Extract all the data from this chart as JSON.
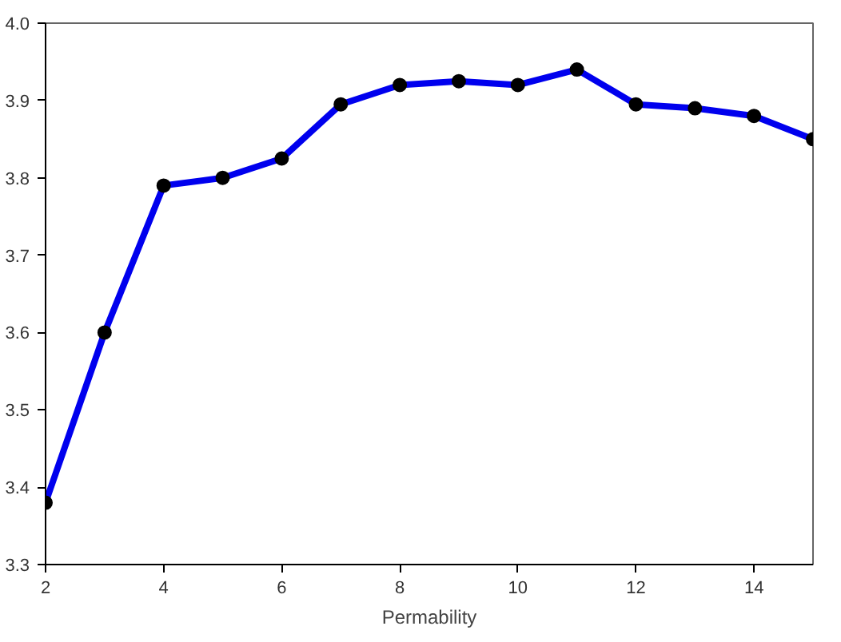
{
  "chart_data": {
    "type": "line",
    "xlabel": "Permability",
    "x": [
      2,
      3,
      4,
      5,
      6,
      7,
      8,
      9,
      10,
      11,
      12,
      13,
      14,
      15
    ],
    "series": [
      {
        "color": "#0000ee",
        "values": [
          3.38,
          3.6,
          3.79,
          3.8,
          3.825,
          3.895,
          3.92,
          3.925,
          3.92,
          3.94,
          3.895,
          3.89,
          3.88,
          3.85
        ]
      }
    ],
    "xlim": [
      2,
      15
    ],
    "ylim": [
      3.3,
      4.0
    ],
    "xticks": [
      2,
      4,
      6,
      8,
      10,
      12,
      14
    ],
    "yticks": [
      {
        "value": 3.3,
        "label": "3.3"
      },
      {
        "value": 3.4,
        "label": "3.4"
      },
      {
        "value": 3.5,
        "label": "3.5"
      },
      {
        "value": 3.6,
        "label": "3.6"
      },
      {
        "value": 3.7,
        "label": "3.7"
      },
      {
        "value": 3.8,
        "label": "3.8"
      },
      {
        "value": 3.9,
        "label": "3.9"
      },
      {
        "value": 4.0,
        "label": "4.0"
      }
    ],
    "marker": "circle",
    "line_style": "solid",
    "grid": false
  }
}
